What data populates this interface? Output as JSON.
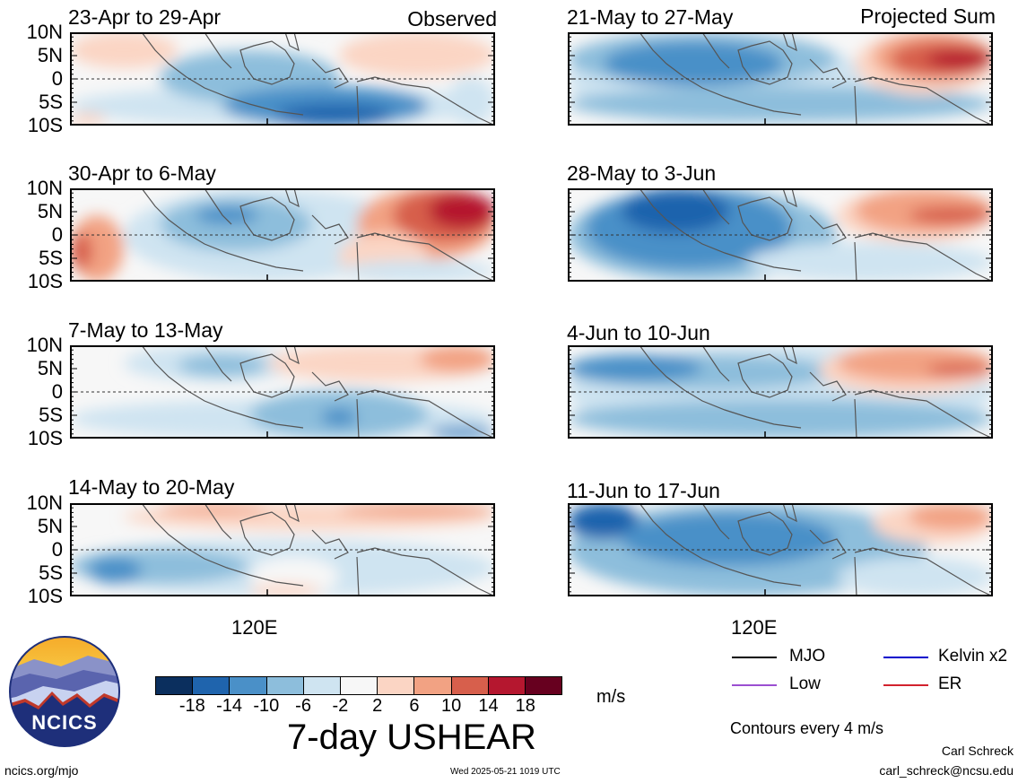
{
  "header": {
    "left_tag": "Observed",
    "right_tag": "Projected Sum"
  },
  "panels": [
    {
      "id": "p1",
      "title": "23-Apr to 29-Apr"
    },
    {
      "id": "p2",
      "title": "30-Apr to 6-May"
    },
    {
      "id": "p3",
      "title": "7-May to 13-May"
    },
    {
      "id": "p4",
      "title": "14-May to 20-May"
    },
    {
      "id": "p5",
      "title": "21-May to 27-May"
    },
    {
      "id": "p6",
      "title": "28-May to 3-Jun"
    },
    {
      "id": "p7",
      "title": "4-Jun to 10-Jun"
    },
    {
      "id": "p8",
      "title": "11-Jun to 17-Jun"
    }
  ],
  "axes": {
    "y_ticks": [
      "10N",
      "5N",
      "0",
      "5S",
      "10S"
    ],
    "x_tick": "120E"
  },
  "colorbar": {
    "labels": [
      "-18",
      "-14",
      "-10",
      "-6",
      "-2",
      "2",
      "6",
      "10",
      "14",
      "18"
    ],
    "colors": [
      "#0b2f5e",
      "#1f64ad",
      "#4a90c8",
      "#8dbedc",
      "#cfe4f1",
      "#f7f7f7",
      "#fbd5c4",
      "#f2a283",
      "#d75f4c",
      "#b5172f",
      "#67001f"
    ],
    "unit": "m/s",
    "title": "7-day USHEAR"
  },
  "legend": {
    "items": [
      {
        "label": "MJO",
        "color": "#000000"
      },
      {
        "label": "Kelvin x2",
        "color": "#0000cc"
      },
      {
        "label": "Low",
        "color": "#9b4fd1"
      },
      {
        "label": "ER",
        "color": "#d2222d"
      }
    ],
    "contours_note": "Contours every 4 m/s"
  },
  "footer": {
    "left": "ncics.org/mjo",
    "center": "Wed 2025-05-21 1019 UTC",
    "author": "Carl Schreck",
    "email": "carl_schreck@ncsu.edu"
  },
  "logo": {
    "text": "NCICS"
  }
}
